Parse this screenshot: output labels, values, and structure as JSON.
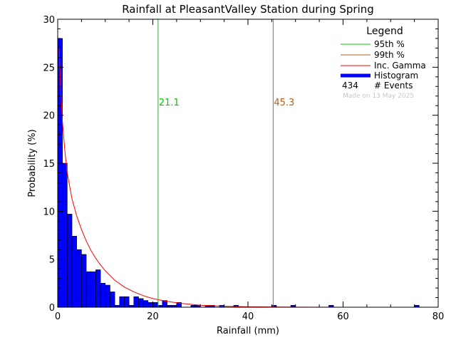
{
  "chart_data": {
    "type": "bar",
    "title": "Rainfall at PleasantValley Station during Spring",
    "xlabel": "Rainfall (mm)",
    "ylabel": "Probability (%)",
    "xlim": [
      0,
      80
    ],
    "ylim": [
      0,
      30
    ],
    "xticks": [
      0,
      20,
      40,
      60,
      80
    ],
    "yticks": [
      0,
      5,
      10,
      15,
      20,
      25,
      30
    ],
    "bin_width": 1,
    "histogram": {
      "name": "Histogram",
      "color": "#0000ff",
      "bin_starts": [
        0,
        1,
        2,
        3,
        4,
        5,
        6,
        7,
        8,
        9,
        10,
        11,
        12,
        13,
        14,
        15,
        16,
        17,
        18,
        19,
        20,
        21,
        22,
        23,
        24,
        25,
        28,
        29,
        31,
        32,
        34,
        37,
        45,
        49,
        57,
        75
      ],
      "values": [
        28.0,
        15.0,
        9.7,
        7.4,
        6.0,
        5.5,
        3.7,
        3.7,
        3.9,
        2.5,
        2.3,
        1.6,
        0.2,
        1.1,
        1.1,
        0.2,
        1.1,
        0.9,
        0.7,
        0.5,
        0.5,
        0.2,
        0.7,
        0.2,
        0.2,
        0.5,
        0.2,
        0.2,
        0.2,
        0.2,
        0.2,
        0.2,
        0.2,
        0.2,
        0.2,
        0.2
      ]
    },
    "gamma_curve": {
      "name": "Inc. Gamma",
      "color": "#ff0000",
      "x": [
        0.3,
        0.6,
        1,
        1.5,
        2,
        3,
        4,
        5,
        6,
        7,
        8,
        9,
        10,
        12,
        14,
        16,
        18,
        20,
        23,
        26,
        30,
        35,
        40,
        50,
        60,
        70,
        80
      ],
      "y": [
        27.0,
        23.0,
        19.3,
        16.3,
        14.0,
        11.3,
        9.5,
        8.1,
        6.9,
        5.9,
        5.1,
        4.4,
        3.8,
        2.8,
        2.1,
        1.6,
        1.2,
        0.9,
        0.6,
        0.4,
        0.2,
        0.1,
        0.05,
        0.01,
        0,
        0,
        0
      ]
    },
    "percentile_95": {
      "label": "95th %",
      "value": 21.1,
      "text": "21.1",
      "color": "#00cc00"
    },
    "percentile_99": {
      "label": "99th %",
      "value": 45.3,
      "text": "45.3",
      "color": "#b06020"
    },
    "legend": {
      "title": "Legend",
      "position": "top-right",
      "entries": [
        "95th %",
        "99th %",
        "Inc. Gamma",
        "Histogram"
      ],
      "events_count": "434",
      "events_label": "# Events",
      "made_on": "Made on 13 May 2025"
    }
  }
}
